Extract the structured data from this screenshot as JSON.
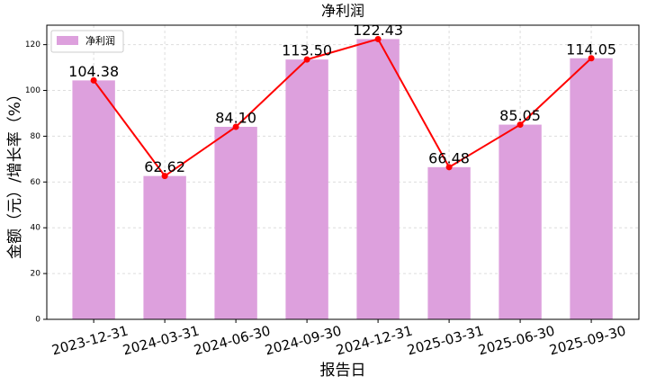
{
  "chart_data": {
    "type": "bar",
    "title": "净利润",
    "x_label": "报告日",
    "y_label": "金额（元）/增长率（%）",
    "categories": [
      "2023-12-31",
      "2024-03-31",
      "2024-06-30",
      "2024-09-30",
      "2024-12-31",
      "2025-03-31",
      "2025-06-30",
      "2025-09-30"
    ],
    "series": [
      {
        "name": "净利润",
        "color": "#dda0dd",
        "values": [
          104.38,
          62.62,
          84.1,
          113.5,
          122.43,
          66.48,
          85.05,
          114.05
        ],
        "value_labels": [
          "104.38",
          "62.62",
          "84.10",
          "113.50",
          "122.43",
          "66.48",
          "85.05",
          "114.05"
        ]
      }
    ],
    "line_overlay": true,
    "line_color": "#ff0000",
    "ylim": [
      0,
      128.5
    ],
    "yticks": [
      0,
      20,
      40,
      60,
      80,
      100,
      120
    ],
    "grid": true,
    "legend": "upper left"
  }
}
